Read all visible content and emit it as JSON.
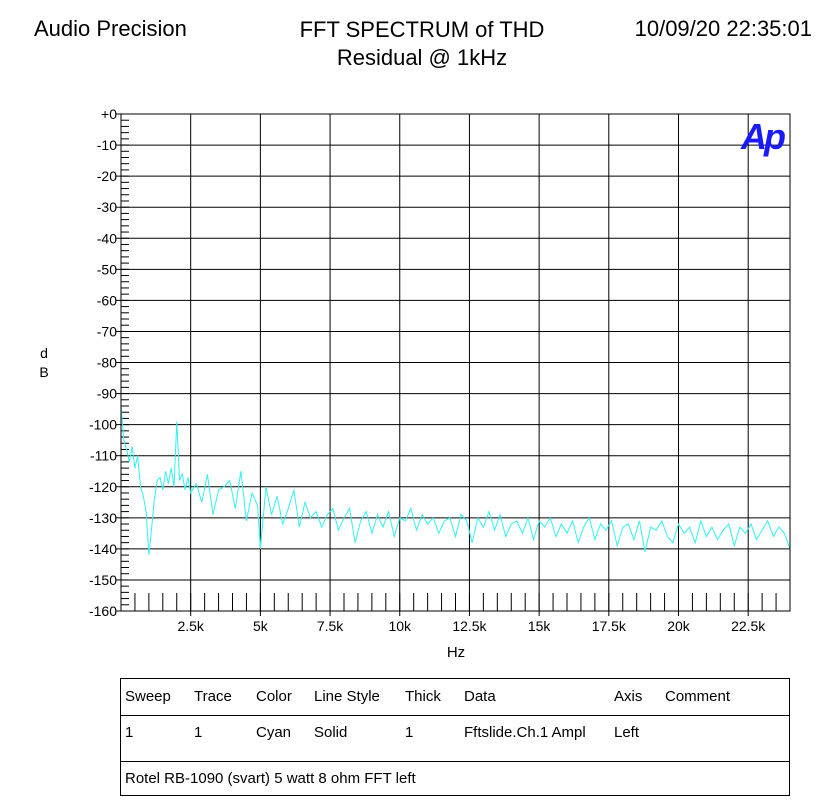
{
  "header": {
    "left": "Audio Precision",
    "title_line1": "FFT SPECTRUM of THD",
    "title_line2": "Residual @ 1kHz",
    "datetime": "10/09/20 22:35:01"
  },
  "logo_text": "Ap",
  "colors": {
    "trace": "#33f0f0",
    "logo": "#1a1aff",
    "grid": "#000000"
  },
  "legend": {
    "headers": [
      "Sweep",
      "Trace",
      "Color",
      "Line Style",
      "Thick",
      "Data",
      "Axis",
      "Comment"
    ],
    "row": [
      "1",
      "1",
      "Cyan",
      "Solid",
      "1",
      "Fftslide.Ch.1 Ampl",
      "Left",
      ""
    ],
    "comment": "Rotel RB-1090 (svart) 5 watt 8 ohm FFT left"
  },
  "chart_data": {
    "type": "line",
    "title": "FFT SPECTRUM of THD Residual @ 1kHz",
    "xlabel": "Hz",
    "ylabel": "dB",
    "xlim": [
      0,
      24000
    ],
    "ylim": [
      -160,
      0
    ],
    "x_ticks": [
      2500,
      5000,
      7500,
      10000,
      12500,
      15000,
      17500,
      20000,
      22500
    ],
    "x_tick_labels": [
      "2.5k",
      "5k",
      "7.5k",
      "10k",
      "12.5k",
      "15k",
      "17.5k",
      "20k",
      "22.5k"
    ],
    "y_ticks": [
      0,
      -10,
      -20,
      -30,
      -40,
      -50,
      -60,
      -70,
      -80,
      -90,
      -100,
      -110,
      -120,
      -130,
      -140,
      -150,
      -160
    ],
    "y_tick_labels": [
      "+0",
      "-10",
      "-20",
      "-30",
      "-40",
      "-50",
      "-60",
      "-70",
      "-80",
      "-90",
      "-100",
      "-110",
      "-120",
      "-130",
      "-140",
      "-150",
      "-160"
    ],
    "grid": true,
    "series": [
      {
        "color": "cyan",
        "x": [
          0,
          100,
          200,
          300,
          400,
          500,
          600,
          700,
          800,
          900,
          1000,
          1100,
          1200,
          1300,
          1400,
          1500,
          1600,
          1700,
          1800,
          1900,
          2000,
          2100,
          2200,
          2300,
          2400,
          2500,
          2700,
          2900,
          3100,
          3300,
          3500,
          3700,
          3900,
          4100,
          4300,
          4500,
          4700,
          4900,
          5000,
          5200,
          5400,
          5600,
          5800,
          6000,
          6200,
          6400,
          6600,
          6800,
          7000,
          7200,
          7400,
          7600,
          7800,
          8000,
          8200,
          8400,
          8600,
          8800,
          9000,
          9200,
          9400,
          9600,
          9800,
          10000,
          10200,
          10400,
          10600,
          10800,
          11000,
          11200,
          11400,
          11600,
          11800,
          12000,
          12200,
          12400,
          12600,
          12800,
          13000,
          13200,
          13400,
          13600,
          13800,
          14000,
          14200,
          14400,
          14600,
          14800,
          15000,
          15200,
          15400,
          15600,
          15800,
          16000,
          16200,
          16400,
          16600,
          16800,
          17000,
          17200,
          17400,
          17600,
          17800,
          18000,
          18200,
          18400,
          18600,
          18800,
          19000,
          19200,
          19400,
          19600,
          19800,
          20000,
          20200,
          20400,
          20600,
          20800,
          21000,
          21200,
          21400,
          21600,
          21800,
          22000,
          22200,
          22400,
          22600,
          22800,
          23000,
          23200,
          23400,
          23600,
          23800,
          24000
        ],
        "y": [
          -94,
          -105,
          -108,
          -112,
          -107,
          -114,
          -110,
          -120,
          -123,
          -128,
          -142,
          -133,
          -124,
          -118,
          -117,
          -121,
          -115,
          -119,
          -114,
          -120,
          -99,
          -118,
          -116,
          -121,
          -117,
          -122,
          -119,
          -125,
          -116,
          -129,
          -121,
          -120,
          -118,
          -127,
          -115,
          -131,
          -122,
          -126,
          -140,
          -120,
          -129,
          -123,
          -132,
          -127,
          -121,
          -133,
          -125,
          -130,
          -128,
          -133,
          -129,
          -127,
          -134,
          -130,
          -127,
          -138,
          -131,
          -128,
          -135,
          -129,
          -133,
          -128,
          -136,
          -130,
          -131,
          -127,
          -134,
          -129,
          -132,
          -130,
          -135,
          -131,
          -130,
          -136,
          -129,
          -131,
          -138,
          -130,
          -133,
          -128,
          -134,
          -129,
          -136,
          -132,
          -131,
          -135,
          -130,
          -137,
          -131,
          -133,
          -130,
          -136,
          -132,
          -135,
          -131,
          -138,
          -133,
          -130,
          -137,
          -132,
          -134,
          -131,
          -139,
          -133,
          -132,
          -137,
          -131,
          -141,
          -133,
          -134,
          -131,
          -136,
          -138,
          -132,
          -135,
          -133,
          -138,
          -131,
          -136,
          -133,
          -137,
          -134,
          -132,
          -139,
          -133,
          -135,
          -132,
          -137,
          -134,
          -131,
          -136,
          -133,
          -135,
          -140
        ]
      }
    ]
  }
}
